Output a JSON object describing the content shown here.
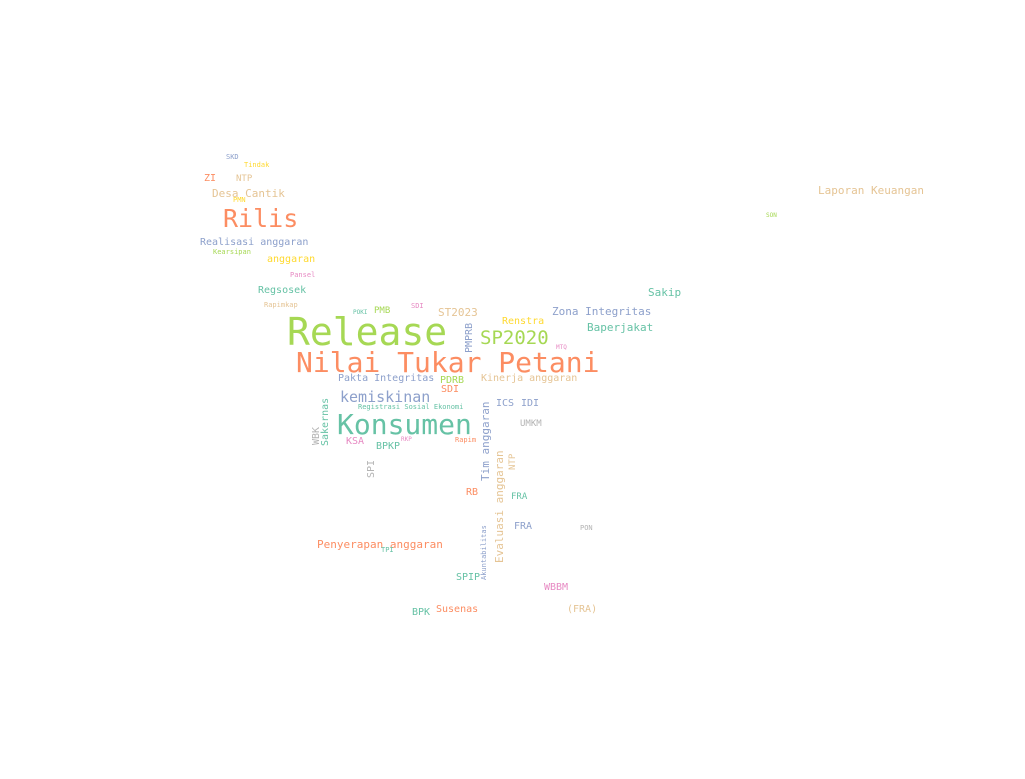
{
  "words": [
    {
      "text": "Release",
      "color": "#a6d854"
    },
    {
      "text": "Nilai Tukar Petani",
      "color": "#fc8d62"
    },
    {
      "text": "Konsumen",
      "color": "#66c2a5"
    },
    {
      "text": "Rilis",
      "color": "#fc8d62"
    },
    {
      "text": "SP2020",
      "color": "#a6d854"
    },
    {
      "text": "kemiskinan",
      "color": "#8da0cb"
    },
    {
      "text": "Laporan Keuangan",
      "color": "#e5c494"
    },
    {
      "text": "Zona Integritas",
      "color": "#8da0cb"
    },
    {
      "text": "Baperjakat",
      "color": "#66c2a5"
    },
    {
      "text": "Sakip",
      "color": "#66c2a5"
    },
    {
      "text": "Desa Cantik",
      "color": "#e5c494"
    },
    {
      "text": "Realisasi anggaran",
      "color": "#8da0cb"
    },
    {
      "text": "anggaran",
      "color": "#ffd92f"
    },
    {
      "text": "Regsosek",
      "color": "#66c2a5"
    },
    {
      "text": "ST2023",
      "color": "#e5c494"
    },
    {
      "text": "Renstra",
      "color": "#ffd92f"
    },
    {
      "text": "Pakta Integritas",
      "color": "#8da0cb"
    },
    {
      "text": "PDRB",
      "color": "#a6d854"
    },
    {
      "text": "Kinerja anggaran",
      "color": "#e5c494"
    },
    {
      "text": "SDI",
      "color": "#fc8d62"
    },
    {
      "text": "ICS",
      "color": "#8da0cb"
    },
    {
      "text": "IDI",
      "color": "#8da0cb"
    },
    {
      "text": "UMKM",
      "color": "#b3b3b3"
    },
    {
      "text": "BPKP",
      "color": "#66c2a5"
    },
    {
      "text": "KSA",
      "color": "#e78ac3"
    },
    {
      "text": "Penyerapan anggaran",
      "color": "#fc8d62"
    },
    {
      "text": "RB",
      "color": "#fc8d62"
    },
    {
      "text": "FRA",
      "color": "#66c2a5"
    },
    {
      "text": "FRA",
      "color": "#8da0cb"
    },
    {
      "text": "SPIP",
      "color": "#66c2a5"
    },
    {
      "text": "WBBM",
      "color": "#e78ac3"
    },
    {
      "text": "BPK",
      "color": "#66c2a5"
    },
    {
      "text": "Susenas",
      "color": "#fc8d62"
    },
    {
      "text": "(FRA)",
      "color": "#e5c494"
    },
    {
      "text": "ZI",
      "color": "#fc8d62"
    },
    {
      "text": "NTP",
      "color": "#e5c494"
    },
    {
      "text": "SKD",
      "color": "#8da0cb"
    },
    {
      "text": "Tindak",
      "color": "#ffd92f"
    },
    {
      "text": "PMN",
      "color": "#ffd92f"
    },
    {
      "text": "Kearsipan",
      "color": "#a6d854"
    },
    {
      "text": "Pansel",
      "color": "#e78ac3"
    },
    {
      "text": "Rapimkap",
      "color": "#e5c494"
    },
    {
      "text": "POKI",
      "color": "#66c2a5"
    },
    {
      "text": "PMB",
      "color": "#a6d854"
    },
    {
      "text": "SDI",
      "color": "#e78ac3"
    },
    {
      "text": "MTQ",
      "color": "#e78ac3"
    },
    {
      "text": "Registrasi Sosial Ekonomi",
      "color": "#66c2a5"
    },
    {
      "text": "RKP",
      "color": "#e78ac3"
    },
    {
      "text": "Rapim",
      "color": "#fc8d62"
    },
    {
      "text": "TPI",
      "color": "#66c2a5"
    },
    {
      "text": "PON",
      "color": "#b3b3b3"
    },
    {
      "text": "SON",
      "color": "#a6d854"
    },
    {
      "text": "Sakernas",
      "color": "#66c2a5"
    },
    {
      "text": "WBK",
      "color": "#b3b3b3"
    },
    {
      "text": "SPI",
      "color": "#b3b3b3"
    },
    {
      "text": "PMPRB",
      "color": "#8da0cb"
    },
    {
      "text": "Tim anggaran",
      "color": "#8da0cb"
    },
    {
      "text": "NTP",
      "color": "#e5c494"
    },
    {
      "text": "Evaluasi anggaran",
      "color": "#e5c494"
    },
    {
      "text": "Akuntabilitas",
      "color": "#8da0cb"
    }
  ]
}
